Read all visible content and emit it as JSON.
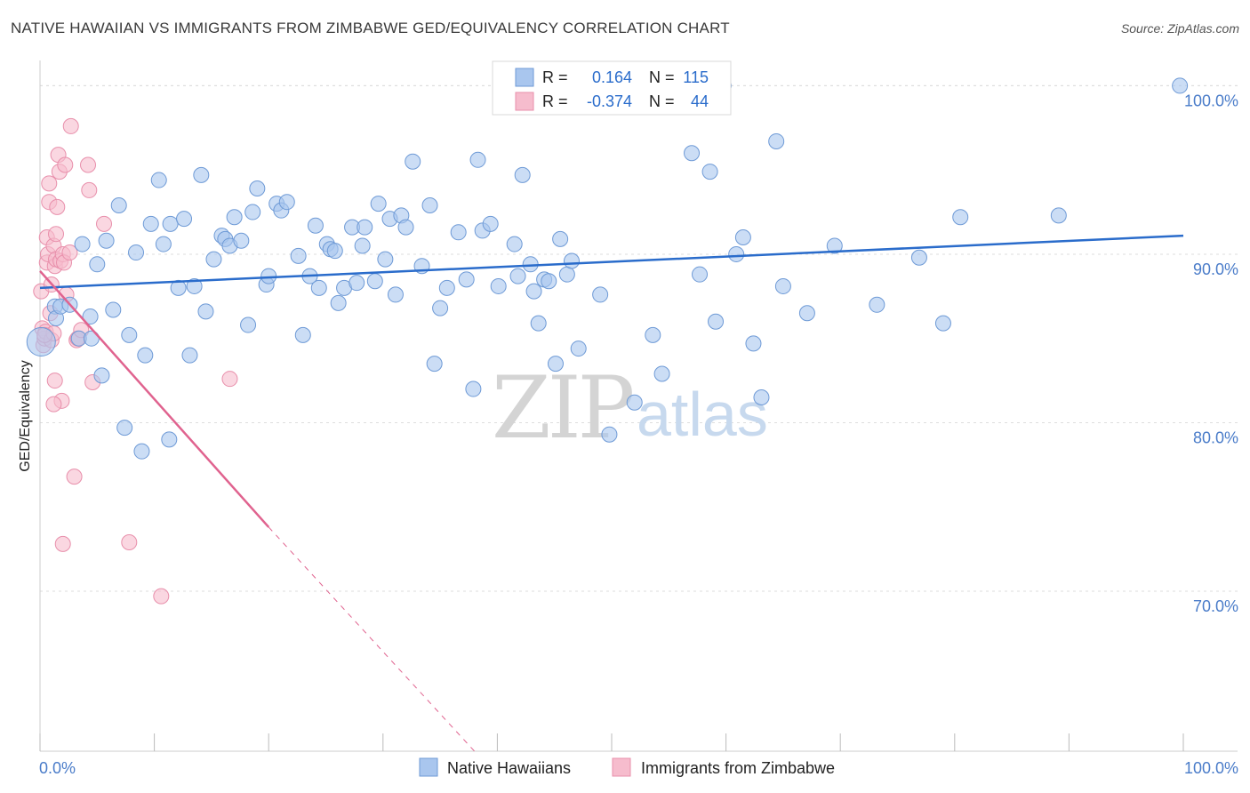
{
  "title": "NATIVE HAWAIIAN VS IMMIGRANTS FROM ZIMBABWE GED/EQUIVALENCY CORRELATION CHART",
  "source": "Source: ZipAtlas.com",
  "watermark": {
    "zip": "ZIP",
    "atlas": "atlas"
  },
  "colors": {
    "blue_fill": "#a9c6ee",
    "blue_stroke": "#6e9ad6",
    "blue_line": "#2a6ccb",
    "pink_fill": "#f6bccd",
    "pink_stroke": "#e88fab",
    "pink_line": "#e0638f",
    "value_text": "#2a6ccb",
    "label_text": "#222222"
  },
  "legend_box": {
    "row1": {
      "r_label": "R =",
      "r_value": "0.164",
      "n_label": "N =",
      "n_value": "115"
    },
    "row2": {
      "r_label": "R =",
      "r_value": "-0.374",
      "n_label": "N =",
      "n_value": "44"
    }
  },
  "bottom_legend": {
    "series1": "Native Hawaiians",
    "series2": "Immigrants from Zimbabwe"
  },
  "chart_data": {
    "type": "scatter",
    "title": "NATIVE HAWAIIAN VS IMMIGRANTS FROM ZIMBABWE GED/EQUIVALENCY CORRELATION CHART",
    "xlabel": "",
    "ylabel": "GED/Equivalency",
    "xlim": [
      0,
      100
    ],
    "ylim": [
      60.5,
      101.5
    ],
    "x_tick_labels": [
      "0.0%",
      "100.0%"
    ],
    "y_ticks": [
      70,
      80,
      90,
      100
    ],
    "y_tick_labels": [
      "70.0%",
      "80.0%",
      "90.0%",
      "100.0%"
    ],
    "grid": true,
    "legend_position": "top-center",
    "series": [
      {
        "name": "Native Hawaiians",
        "color": "#a9c6ee",
        "r": 0.164,
        "n": 115,
        "trend": {
          "x": [
            0,
            100
          ],
          "y": [
            88.0,
            91.1
          ]
        },
        "points": [
          [
            0.1,
            84.8
          ],
          [
            1.3,
            86.9
          ],
          [
            1.4,
            86.2
          ],
          [
            1.8,
            86.9
          ],
          [
            2.6,
            87.0
          ],
          [
            3.4,
            85.0
          ],
          [
            4.5,
            85.0
          ],
          [
            3.7,
            90.6
          ],
          [
            4.4,
            86.3
          ],
          [
            5.0,
            89.4
          ],
          [
            5.4,
            82.8
          ],
          [
            5.8,
            90.8
          ],
          [
            6.4,
            86.7
          ],
          [
            6.9,
            92.9
          ],
          [
            7.4,
            79.7
          ],
          [
            7.8,
            85.2
          ],
          [
            8.4,
            90.1
          ],
          [
            8.9,
            78.3
          ],
          [
            9.2,
            84.0
          ],
          [
            9.7,
            91.8
          ],
          [
            10.4,
            94.4
          ],
          [
            10.8,
            90.6
          ],
          [
            11.3,
            79.0
          ],
          [
            11.4,
            91.8
          ],
          [
            12.1,
            88.0
          ],
          [
            12.6,
            92.1
          ],
          [
            13.1,
            84.0
          ],
          [
            13.5,
            88.1
          ],
          [
            14.1,
            94.7
          ],
          [
            14.5,
            86.6
          ],
          [
            15.2,
            89.7
          ],
          [
            15.9,
            91.1
          ],
          [
            16.2,
            90.9
          ],
          [
            16.6,
            90.5
          ],
          [
            17.0,
            92.2
          ],
          [
            17.6,
            90.8
          ],
          [
            18.2,
            85.8
          ],
          [
            18.6,
            92.5
          ],
          [
            19.0,
            93.9
          ],
          [
            19.8,
            88.2
          ],
          [
            20.0,
            88.7
          ],
          [
            20.7,
            93.0
          ],
          [
            21.1,
            92.6
          ],
          [
            21.6,
            93.1
          ],
          [
            22.6,
            89.9
          ],
          [
            23.0,
            85.2
          ],
          [
            23.6,
            88.7
          ],
          [
            24.1,
            91.7
          ],
          [
            24.4,
            88.0
          ],
          [
            25.1,
            90.6
          ],
          [
            25.4,
            90.3
          ],
          [
            25.8,
            90.2
          ],
          [
            26.1,
            87.1
          ],
          [
            26.6,
            88.0
          ],
          [
            27.3,
            91.6
          ],
          [
            27.7,
            88.3
          ],
          [
            28.2,
            90.5
          ],
          [
            28.4,
            91.6
          ],
          [
            29.3,
            88.4
          ],
          [
            29.6,
            93.0
          ],
          [
            30.2,
            89.7
          ],
          [
            30.6,
            92.1
          ],
          [
            31.1,
            87.6
          ],
          [
            31.6,
            92.3
          ],
          [
            32.0,
            91.6
          ],
          [
            32.6,
            95.5
          ],
          [
            33.4,
            89.3
          ],
          [
            34.1,
            92.9
          ],
          [
            34.5,
            83.5
          ],
          [
            35.0,
            86.8
          ],
          [
            35.6,
            88.0
          ],
          [
            36.6,
            91.3
          ],
          [
            37.3,
            88.5
          ],
          [
            37.9,
            82.0
          ],
          [
            38.3,
            95.6
          ],
          [
            38.7,
            91.4
          ],
          [
            39.4,
            91.8
          ],
          [
            40.1,
            88.1
          ],
          [
            41.5,
            90.6
          ],
          [
            41.8,
            88.7
          ],
          [
            42.2,
            94.7
          ],
          [
            42.9,
            89.4
          ],
          [
            43.2,
            87.8
          ],
          [
            43.6,
            85.9
          ],
          [
            44.1,
            88.5
          ],
          [
            44.5,
            88.4
          ],
          [
            45.1,
            83.5
          ],
          [
            45.5,
            90.9
          ],
          [
            46.1,
            88.8
          ],
          [
            46.5,
            89.6
          ],
          [
            47.1,
            84.4
          ],
          [
            49.0,
            87.6
          ],
          [
            49.8,
            79.3
          ],
          [
            52.0,
            81.2
          ],
          [
            53.6,
            85.2
          ],
          [
            54.4,
            82.9
          ],
          [
            57.0,
            96.0
          ],
          [
            57.7,
            88.8
          ],
          [
            58.6,
            94.9
          ],
          [
            59.1,
            86.0
          ],
          [
            60.9,
            90.0
          ],
          [
            61.5,
            91.0
          ],
          [
            62.4,
            84.7
          ],
          [
            63.1,
            81.5
          ],
          [
            64.4,
            96.7
          ],
          [
            65.0,
            88.1
          ],
          [
            67.1,
            86.5
          ],
          [
            69.5,
            90.5
          ],
          [
            73.2,
            87.0
          ],
          [
            76.9,
            89.8
          ],
          [
            79.0,
            85.9
          ],
          [
            80.5,
            92.2
          ],
          [
            89.1,
            92.3
          ],
          [
            99.7,
            100.0
          ],
          [
            59.8,
            100.0
          ]
        ]
      },
      {
        "name": "Immigrants from Zimbabwe",
        "color": "#f6bccd",
        "r": -0.374,
        "n": 44,
        "trend": {
          "x": [
            0,
            20
          ],
          "y": [
            89.0,
            73.8
          ]
        },
        "trend_extension": {
          "x": [
            20,
            38
          ],
          "y": [
            73.8,
            60.5
          ]
        },
        "points": [
          [
            0.1,
            87.8
          ],
          [
            0.2,
            85.6
          ],
          [
            0.3,
            84.6
          ],
          [
            0.4,
            85.0
          ],
          [
            0.5,
            85.4
          ],
          [
            0.6,
            89.5
          ],
          [
            0.7,
            90.0
          ],
          [
            0.6,
            91.0
          ],
          [
            0.8,
            93.1
          ],
          [
            0.8,
            94.2
          ],
          [
            0.9,
            86.5
          ],
          [
            1.0,
            84.9
          ],
          [
            1.0,
            88.2
          ],
          [
            1.2,
            90.5
          ],
          [
            1.2,
            85.3
          ],
          [
            1.3,
            89.3
          ],
          [
            1.4,
            91.2
          ],
          [
            1.4,
            89.7
          ],
          [
            1.5,
            92.8
          ],
          [
            1.6,
            95.9
          ],
          [
            1.7,
            94.9
          ],
          [
            1.8,
            89.6
          ],
          [
            1.9,
            81.3
          ],
          [
            2.0,
            90.0
          ],
          [
            2.0,
            72.8
          ],
          [
            2.1,
            89.5
          ],
          [
            2.2,
            95.3
          ],
          [
            2.3,
            87.6
          ],
          [
            2.6,
            90.1
          ],
          [
            2.7,
            97.6
          ],
          [
            3.0,
            76.8
          ],
          [
            3.2,
            84.9
          ],
          [
            3.3,
            85.0
          ],
          [
            3.6,
            85.5
          ],
          [
            4.2,
            95.3
          ],
          [
            4.3,
            93.8
          ],
          [
            4.6,
            82.4
          ],
          [
            1.3,
            82.5
          ],
          [
            1.2,
            81.1
          ],
          [
            5.6,
            91.8
          ],
          [
            7.8,
            72.9
          ],
          [
            10.6,
            69.7
          ],
          [
            16.6,
            82.6
          ],
          [
            0.4,
            85.2
          ]
        ]
      }
    ]
  }
}
